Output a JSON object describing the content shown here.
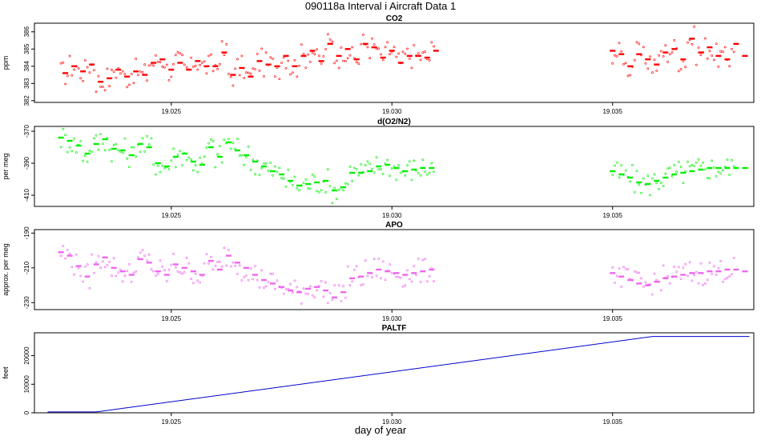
{
  "title": "090118a   Interval i Aircraft Data 1",
  "x_axis_title": "day of year",
  "chart_data": [
    {
      "type": "scatter",
      "title": "CO2",
      "ylabel": "ppm",
      "xlim": [
        19.0219,
        19.0382
      ],
      "ylim": [
        381.9,
        386.5
      ],
      "x_ticks": [
        "19.025",
        "19.030",
        "19.035"
      ],
      "y_ticks": [
        "382",
        "383",
        "384",
        "385",
        "386"
      ],
      "color": "#ff0000",
      "segments": [
        [
          19.0225,
          19.031
        ],
        [
          19.035,
          19.0378
        ]
      ],
      "avg": [
        [
          19.0226,
          383.6
        ],
        [
          19.0228,
          384.0
        ],
        [
          19.023,
          383.7
        ],
        [
          19.0232,
          384.1
        ],
        [
          19.0234,
          383.1
        ],
        [
          19.0236,
          383.3
        ],
        [
          19.0238,
          383.8
        ],
        [
          19.024,
          383.4
        ],
        [
          19.0242,
          383.7
        ],
        [
          19.0244,
          383.5
        ],
        [
          19.0246,
          384.2
        ],
        [
          19.0248,
          384.4
        ],
        [
          19.025,
          383.8
        ],
        [
          19.0252,
          384.2
        ],
        [
          19.0254,
          383.8
        ],
        [
          19.0256,
          384.3
        ],
        [
          19.0258,
          384.0
        ],
        [
          19.026,
          384.0
        ],
        [
          19.0262,
          384.8
        ],
        [
          19.0264,
          383.5
        ],
        [
          19.0266,
          383.9
        ],
        [
          19.0268,
          383.4
        ],
        [
          19.027,
          384.3
        ],
        [
          19.0272,
          384.1
        ],
        [
          19.0274,
          384.0
        ],
        [
          19.0276,
          384.6
        ],
        [
          19.0278,
          384.0
        ],
        [
          19.028,
          384.6
        ],
        [
          19.0282,
          384.9
        ],
        [
          19.0284,
          384.3
        ],
        [
          19.0286,
          385.3
        ],
        [
          19.0288,
          384.6
        ],
        [
          19.029,
          385.0
        ],
        [
          19.0292,
          384.4
        ],
        [
          19.0294,
          385.3
        ],
        [
          19.0296,
          385.1
        ],
        [
          19.0298,
          384.5
        ],
        [
          19.03,
          384.9
        ],
        [
          19.0302,
          384.2
        ],
        [
          19.0304,
          384.6
        ],
        [
          19.0306,
          384.6
        ],
        [
          19.0308,
          384.5
        ],
        [
          19.031,
          384.9
        ],
        [
          19.035,
          384.9
        ],
        [
          19.0352,
          384.7
        ],
        [
          19.0354,
          384.0
        ],
        [
          19.0356,
          384.7
        ],
        [
          19.0358,
          384.4
        ],
        [
          19.036,
          384.1
        ],
        [
          19.0362,
          384.8
        ],
        [
          19.0364,
          385.0
        ],
        [
          19.0366,
          384.4
        ],
        [
          19.0368,
          385.6
        ],
        [
          19.037,
          384.8
        ],
        [
          19.0372,
          385.1
        ],
        [
          19.0374,
          384.6
        ],
        [
          19.0376,
          384.4
        ],
        [
          19.0378,
          385.3
        ],
        [
          19.038,
          384.6
        ]
      ]
    },
    {
      "type": "scatter",
      "title": "d(O2/N2)",
      "ylabel": "per meg",
      "xlim": [
        19.0219,
        19.0382
      ],
      "ylim": [
        -417,
        -367
      ],
      "x_ticks": [
        "19.025",
        "19.030",
        "19.035"
      ],
      "y_ticks": [
        "-370",
        "-390",
        "-410"
      ],
      "color": "#00ee00",
      "segments": [
        [
          19.0225,
          19.031
        ],
        [
          19.035,
          19.0378
        ]
      ],
      "avg": [
        [
          19.0225,
          -374
        ],
        [
          19.0227,
          -376
        ],
        [
          19.0229,
          -379
        ],
        [
          19.0231,
          -384
        ],
        [
          19.0233,
          -378
        ],
        [
          19.0235,
          -375
        ],
        [
          19.0237,
          -381
        ],
        [
          19.0239,
          -382
        ],
        [
          19.0241,
          -385
        ],
        [
          19.0243,
          -378
        ],
        [
          19.0245,
          -380
        ],
        [
          19.0247,
          -390
        ],
        [
          19.0249,
          -392
        ],
        [
          19.0251,
          -386
        ],
        [
          19.0253,
          -384
        ],
        [
          19.0255,
          -389
        ],
        [
          19.0257,
          -391
        ],
        [
          19.0259,
          -380
        ],
        [
          19.0261,
          -386
        ],
        [
          19.0263,
          -377
        ],
        [
          19.0265,
          -382
        ],
        [
          19.0267,
          -385
        ],
        [
          19.0269,
          -389
        ],
        [
          19.0271,
          -392
        ],
        [
          19.0273,
          -395
        ],
        [
          19.0275,
          -397
        ],
        [
          19.0277,
          -401
        ],
        [
          19.0279,
          -404
        ],
        [
          19.0281,
          -403
        ],
        [
          19.0283,
          -402
        ],
        [
          19.0285,
          -401
        ],
        [
          19.0287,
          -407
        ],
        [
          19.0289,
          -405
        ],
        [
          19.0291,
          -396
        ],
        [
          19.0293,
          -396
        ],
        [
          19.0295,
          -395
        ],
        [
          19.0297,
          -392
        ],
        [
          19.0299,
          -391
        ],
        [
          19.0301,
          -393
        ],
        [
          19.0303,
          -395
        ],
        [
          19.0305,
          -394
        ],
        [
          19.0307,
          -393
        ],
        [
          19.0309,
          -393
        ],
        [
          19.035,
          -395
        ],
        [
          19.0352,
          -397
        ],
        [
          19.0354,
          -399
        ],
        [
          19.0356,
          -402
        ],
        [
          19.0358,
          -403
        ],
        [
          19.036,
          -401
        ],
        [
          19.0362,
          -399
        ],
        [
          19.0364,
          -397
        ],
        [
          19.0366,
          -396
        ],
        [
          19.0368,
          -395
        ],
        [
          19.037,
          -394
        ],
        [
          19.0372,
          -393
        ],
        [
          19.0374,
          -393
        ],
        [
          19.0376,
          -393
        ],
        [
          19.0378,
          -393
        ],
        [
          19.038,
          -393
        ]
      ]
    },
    {
      "type": "scatter",
      "title": "APO",
      "ylabel": "approx. per meg",
      "xlim": [
        19.0219,
        19.0382
      ],
      "ylim": [
        -234,
        -188
      ],
      "x_ticks": [
        "19.025",
        "19.030",
        "19.035"
      ],
      "y_ticks": [
        "-190",
        "-210",
        "-230"
      ],
      "color": "#ee66ee",
      "segments": [
        [
          19.0225,
          19.031
        ],
        [
          19.035,
          19.0378
        ]
      ],
      "avg": [
        [
          19.0225,
          -201
        ],
        [
          19.0227,
          -203
        ],
        [
          19.0229,
          -209
        ],
        [
          19.0231,
          -215
        ],
        [
          19.0233,
          -208
        ],
        [
          19.0235,
          -204
        ],
        [
          19.0237,
          -210
        ],
        [
          19.0239,
          -212
        ],
        [
          19.0241,
          -214
        ],
        [
          19.0243,
          -205
        ],
        [
          19.0245,
          -207
        ],
        [
          19.0247,
          -212
        ],
        [
          19.0249,
          -214
        ],
        [
          19.0251,
          -208
        ],
        [
          19.0253,
          -210
        ],
        [
          19.0255,
          -212
        ],
        [
          19.0257,
          -214
        ],
        [
          19.0259,
          -206
        ],
        [
          19.0261,
          -211
        ],
        [
          19.0263,
          -203
        ],
        [
          19.0265,
          -207
        ],
        [
          19.0267,
          -210
        ],
        [
          19.0269,
          -214
        ],
        [
          19.0271,
          -217
        ],
        [
          19.0273,
          -219
        ],
        [
          19.0275,
          -221
        ],
        [
          19.0277,
          -223
        ],
        [
          19.0279,
          -224
        ],
        [
          19.0281,
          -222
        ],
        [
          19.0283,
          -221
        ],
        [
          19.0285,
          -223
        ],
        [
          19.0287,
          -227
        ],
        [
          19.0289,
          -224
        ],
        [
          19.0291,
          -216
        ],
        [
          19.0293,
          -215
        ],
        [
          19.0295,
          -213
        ],
        [
          19.0297,
          -211
        ],
        [
          19.0299,
          -212
        ],
        [
          19.0301,
          -213
        ],
        [
          19.0303,
          -214
        ],
        [
          19.0305,
          -213
        ],
        [
          19.0307,
          -212
        ],
        [
          19.0309,
          -211
        ],
        [
          19.035,
          -213
        ],
        [
          19.0352,
          -215
        ],
        [
          19.0354,
          -217
        ],
        [
          19.0356,
          -219
        ],
        [
          19.0358,
          -220
        ],
        [
          19.036,
          -218
        ],
        [
          19.0362,
          -216
        ],
        [
          19.0364,
          -215
        ],
        [
          19.0366,
          -214
        ],
        [
          19.0368,
          -213
        ],
        [
          19.037,
          -213
        ],
        [
          19.0372,
          -212
        ],
        [
          19.0374,
          -212
        ],
        [
          19.0376,
          -211
        ],
        [
          19.0378,
          -211
        ],
        [
          19.038,
          -212
        ]
      ]
    },
    {
      "type": "line",
      "title": "PALTF",
      "ylabel": "feet",
      "xlim": [
        19.0219,
        19.0382
      ],
      "ylim": [
        0,
        28000
      ],
      "x_ticks": [
        "19.025",
        "19.030",
        "19.035"
      ],
      "y_ticks": [
        "0",
        "10000",
        "20000"
      ],
      "color": "#0000cc",
      "points": [
        [
          19.0222,
          300
        ],
        [
          19.0233,
          300
        ],
        [
          19.0359,
          26700
        ],
        [
          19.0381,
          26700
        ]
      ]
    }
  ]
}
